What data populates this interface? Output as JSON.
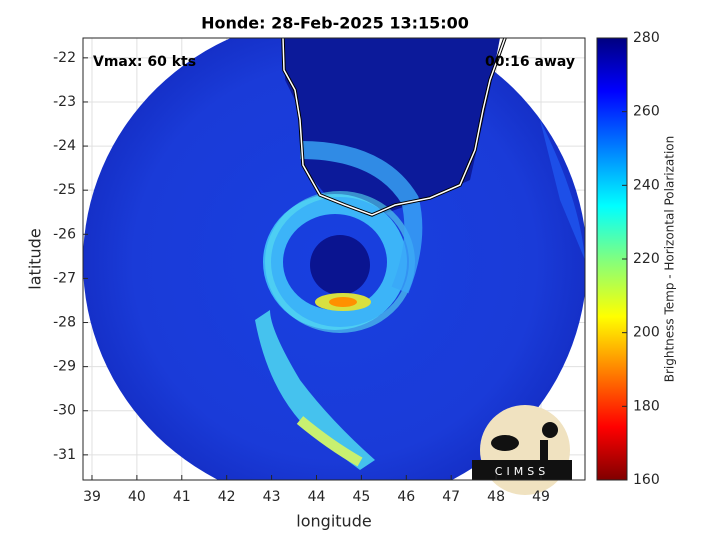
{
  "chart_data": {
    "type": "image",
    "title": "Honde: 28-Feb-2025 13:15:00",
    "annotations": [
      "Vmax: 60 kts",
      "00:16 away"
    ],
    "x_label": "longitude",
    "y_label": "latitude",
    "xlim": [
      38.8,
      49.98
    ],
    "ylim": [
      -31.57,
      -21.55
    ],
    "xticks": [
      39,
      40,
      41,
      42,
      43,
      44,
      45,
      46,
      47,
      48,
      49
    ],
    "yticks": [
      -22,
      -23,
      -24,
      -25,
      -26,
      -27,
      -28,
      -29,
      -30,
      -31
    ],
    "grid": true,
    "colorbar": {
      "label": "Brightness Temp - Horizontal Polarization",
      "clim": [
        160,
        280
      ],
      "ticks": [
        160,
        180,
        200,
        220,
        240,
        260,
        280
      ]
    },
    "logo": "CIMSS"
  }
}
